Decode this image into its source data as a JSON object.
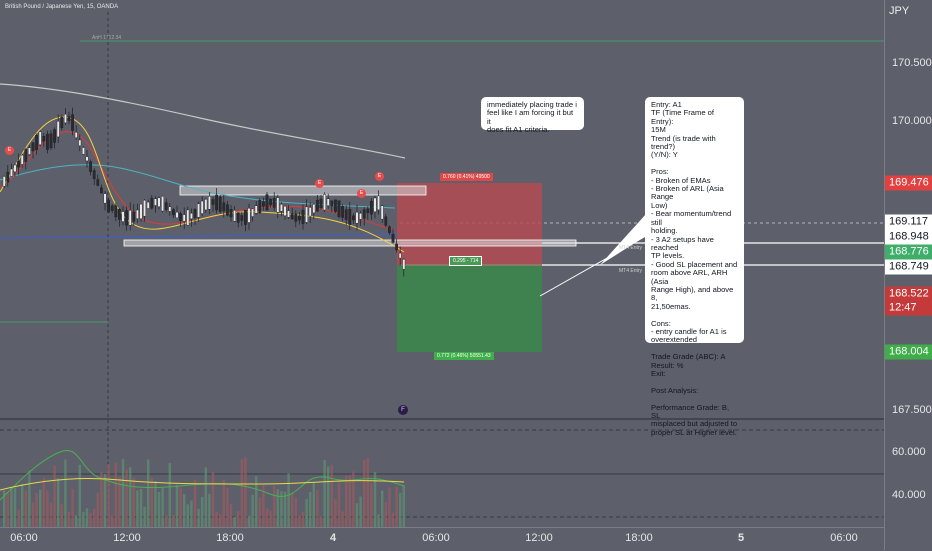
{
  "chart_title": "British Pound / Japanese Yen, 15, OANDA",
  "currency": "JPY",
  "colors": {
    "background": "#5d606b",
    "stop_zone": "#b84a50",
    "target_zone": "#3a8a4a",
    "ema_fast": "#e53935",
    "ema_slow": "#f5d142",
    "ema_mid": "#4fb3bf"
  },
  "price_axis": [
    "170.500",
    "170.000",
    "167.500",
    "60.000",
    "40.000"
  ],
  "price_tags": {
    "p169476": "169.476",
    "p169117": "169.117",
    "p168948": "168.948",
    "p168776": "168.776",
    "p168749": "168.749",
    "p168522": "168.522",
    "countdown": "12:47",
    "p168004": "168.004"
  },
  "time_axis": [
    "06:00",
    "12:00",
    "18:00",
    "4",
    "06:00",
    "12:00",
    "18:00",
    "5",
    "06:00"
  ],
  "labels": {
    "stop_info": "0.760 (0.41%) 49500",
    "target_info": "0.772 (0.46%) 50551.43",
    "entry_box": "0.295 - 714",
    "mt4_a": "MT4 Entry",
    "mt4_b": "MT4 Entry",
    "ath": "AnH 1712.34",
    "e": "E",
    "f": "F"
  },
  "note_top": "immediately placing trade i\nfeel like I am forcing it but it\ndoes fit A1 criteria.",
  "note_main": "Entry: A1\nTF (Time Frame of Entry):\n15M\nTrend (is trade with trend?)\n(Y/N): Y\n\nPros:\n- Broken of EMAs\n- Broken of ARL (Asia Range\nLow)\n- Bear momentum/trend still\nholding.\n- 3 A2 setups have reached\nTP levels.\n- Good SL placement and\nroom above ARL, ARH (Asia\nRange High), and above 8,\n21,50emas.\n\nCons:\n- entry candle for A1 is\noverextended\n\nTrade Grade (ABC): A\nResult: %\nExit:\n\nPost Analysis:\n\nPerformance Grade: B, SL\nmisplaced but adjusted to\nproper SL at Higher level."
}
